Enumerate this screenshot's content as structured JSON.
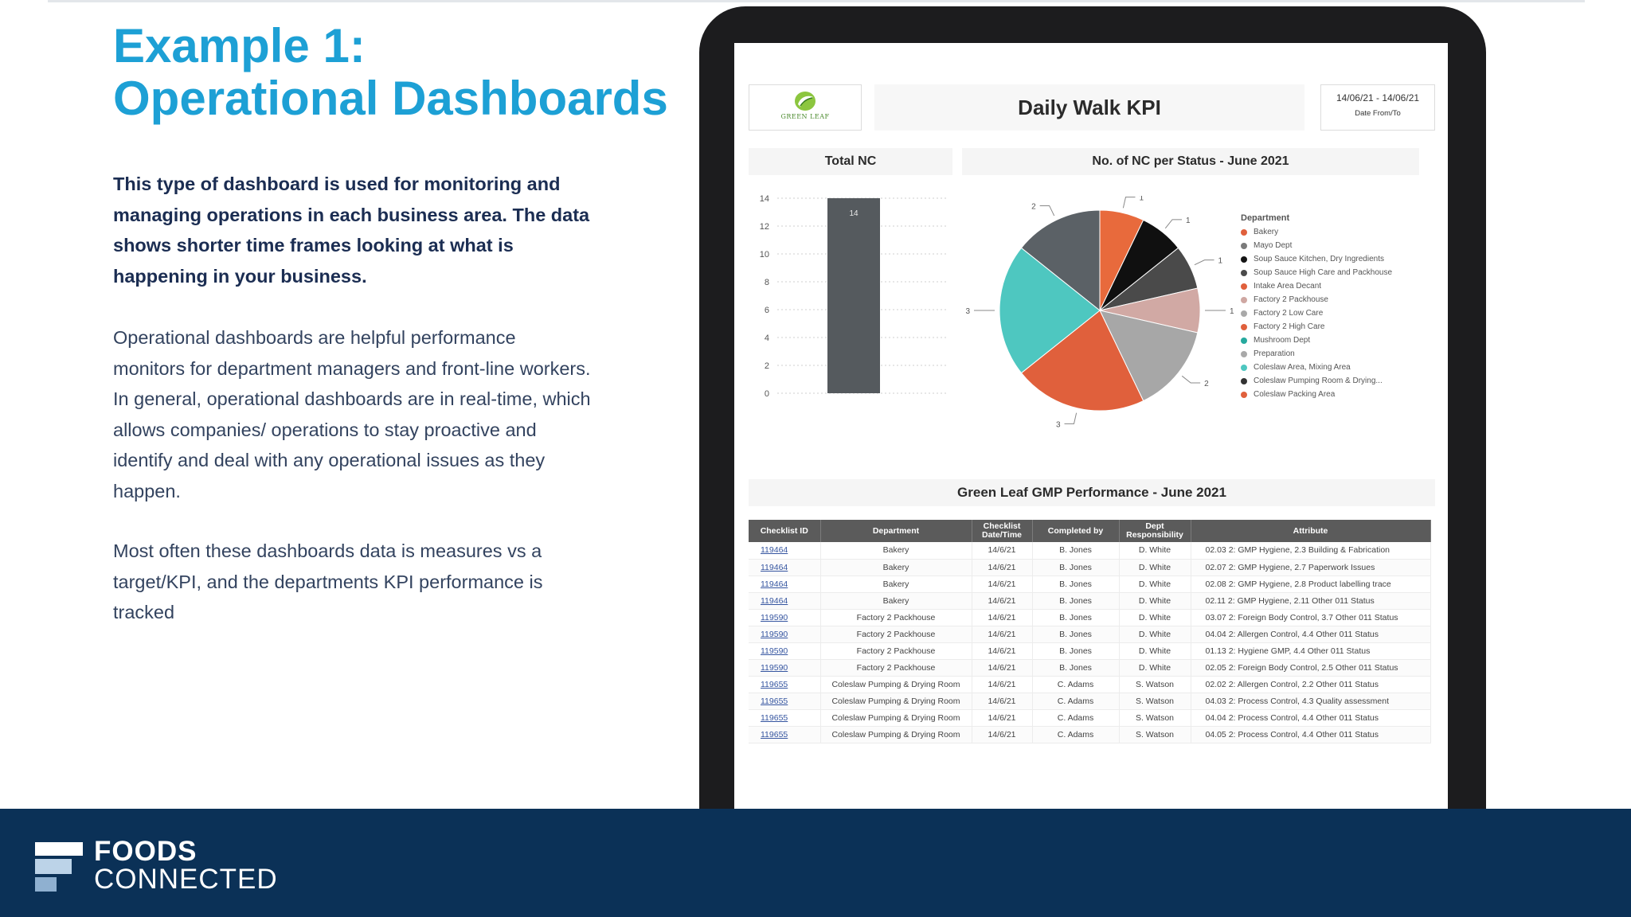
{
  "slide": {
    "title_line1": "Example 1:",
    "title_line2": "Operational Dashboards",
    "intro": "This type of dashboard is used for monitoring and managing operations in each business area. The data shows shorter time frames looking at what is happening in your business.",
    "paragraph1": "Operational dashboards are helpful performance monitors for department managers and front-line workers.  In general, operational dashboards are in real-time, which allows companies/ operations to stay proactive and identify and deal with any operational issues as they happen.",
    "paragraph2": "Most often these dashboards data is measures vs a target/KPI, and the departments KPI performance is tracked"
  },
  "dashboard": {
    "logo_text": "GREEN LEAF",
    "title": "Daily Walk KPI",
    "date_range": "14/06/21 - 14/06/21",
    "date_label": "Date From/To",
    "total_nc_heading": "Total NC",
    "pie_heading": "No. of NC per Status - June 2021",
    "legend_title": "Department",
    "gmp_title": "Green Leaf GMP Performance - June 2021"
  },
  "chart_data": [
    {
      "type": "bar",
      "title": "Total NC",
      "categories": [
        ""
      ],
      "values": [
        14
      ],
      "ylim": [
        0,
        14
      ],
      "yticks": [
        0,
        2,
        4,
        6,
        8,
        10,
        12,
        14
      ],
      "grid": true,
      "bar_color": "#555a5e"
    },
    {
      "type": "pie",
      "title": "No. of NC per Status - June 2021",
      "legend_title": "Department",
      "legend_position": "right",
      "labels": [
        "Bakery",
        "Mayo Dept",
        "Soup Sauce Kitchen, Dry Ingredients",
        "Soup Sauce High Care and Packhouse",
        "Intake Area Decant",
        "Factory 2 Packhouse",
        "Factory 2 Low Care",
        "Factory 2 High Care",
        "Mushroom Dept",
        "Preparation",
        "Coleslaw Area, Mixing Area",
        "Coleslaw Pumping Room & Drying...",
        "Coleslaw Packing Area"
      ],
      "legend_colors": [
        "#e0603c",
        "#7a7a7a",
        "#151515",
        "#4a4a4a",
        "#e0603c",
        "#cfa7a2",
        "#a9a9a9",
        "#e0603c",
        "#26a99e",
        "#a9a9a9",
        "#4ec7c0",
        "#333333",
        "#e0603c"
      ],
      "slices": [
        {
          "value": 1,
          "color": "#e86a3c"
        },
        {
          "value": 1,
          "color": "#101010"
        },
        {
          "value": 1,
          "color": "#4a4a4a"
        },
        {
          "value": 1,
          "color": "#d1a9a4"
        },
        {
          "value": 2,
          "color": "#a7a7a7"
        },
        {
          "value": 3,
          "color": "#e0603c"
        },
        {
          "value": 3,
          "color": "#4ec7c0"
        },
        {
          "value": 2,
          "color": "#5b6166"
        }
      ]
    }
  ],
  "gmp_table": {
    "headers": [
      "Checklist ID",
      "Department",
      "Checklist Date/Time",
      "Completed by",
      "Dept Responsibility",
      "Attribute"
    ],
    "rows": [
      [
        "119464",
        "Bakery",
        "14/6/21",
        "B. Jones",
        "D. White",
        "02.03 2: GMP Hygiene, 2.3 Building & Fabrication"
      ],
      [
        "119464",
        "Bakery",
        "14/6/21",
        "B. Jones",
        "D. White",
        "02.07 2: GMP Hygiene, 2.7 Paperwork Issues"
      ],
      [
        "119464",
        "Bakery",
        "14/6/21",
        "B. Jones",
        "D. White",
        "02.08 2: GMP Hygiene,  2.8 Product labelling trace"
      ],
      [
        "119464",
        "Bakery",
        "14/6/21",
        "B. Jones",
        "D. White",
        "02.11 2: GMP Hygiene,  2.11 Other 011 Status"
      ],
      [
        "119590",
        "Factory 2 Packhouse",
        "14/6/21",
        "B. Jones",
        "D. White",
        "03.07 2: Foreign Body Control, 3.7 Other 011 Status"
      ],
      [
        "119590",
        "Factory 2 Packhouse",
        "14/6/21",
        "B. Jones",
        "D. White",
        "04.04 2: Allergen Control, 4.4 Other 011 Status"
      ],
      [
        "119590",
        "Factory 2 Packhouse",
        "14/6/21",
        "B. Jones",
        "D. White",
        "01.13 2:  Hygiene GMP, 4.4 Other 011 Status"
      ],
      [
        "119590",
        "Factory 2 Packhouse",
        "14/6/21",
        "B. Jones",
        "D. White",
        "02.05 2: Foreign Body Control, 2.5 Other 011 Status"
      ],
      [
        "119655",
        "Coleslaw Pumping & Drying Room",
        "14/6/21",
        "C. Adams",
        "S. Watson",
        "02.02 2: Allergen Control, 2.2 Other 011 Status"
      ],
      [
        "119655",
        "Coleslaw Pumping & Drying Room",
        "14/6/21",
        "C. Adams",
        "S. Watson",
        "04.03 2: Process Control, 4.3 Quality assessment"
      ],
      [
        "119655",
        "Coleslaw Pumping & Drying Room",
        "14/6/21",
        "C. Adams",
        "S. Watson",
        "04.04 2: Process Control, 4.4 Other 011 Status"
      ],
      [
        "119655",
        "Coleslaw Pumping & Drying Room",
        "14/6/21",
        "C. Adams",
        "S. Watson",
        "04.05 2: Process Control, 4.4 Other 011 Status"
      ]
    ]
  },
  "footer": {
    "brand_line1": "FOODS",
    "brand_line2": "CONNECTED",
    "brand_icon": "foods-connected-logo-icon"
  },
  "colors": {
    "accent": "#1da0d5",
    "heading_text": "#1b2d52",
    "footer_bg": "#0b3157"
  }
}
